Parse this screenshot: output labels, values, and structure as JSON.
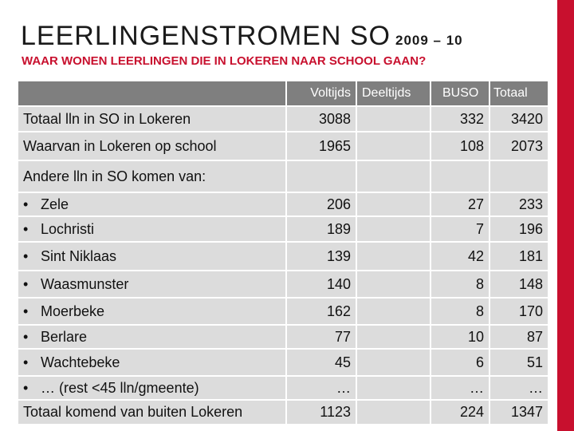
{
  "title": "LEERLINGENSTROMEN SO",
  "title_years": "2009 – 10",
  "subtitle": "WAAR WONEN LEERLINGEN DIE IN LOKEREN NAAR SCHOOL GAAN?",
  "accent_color": "#c8102e",
  "table": {
    "headers": {
      "label": "",
      "voltijds": "Voltijds",
      "deeltijds": "Deeltijds",
      "buso": "BUSO",
      "totaal": "Totaal"
    },
    "rows": [
      {
        "label": "Totaal lln in SO in Lokeren",
        "voltijds": "3088",
        "deeltijds": "",
        "buso": "332",
        "totaal": "3420"
      },
      {
        "label": "Waarvan in Lokeren op school",
        "voltijds": "1965",
        "deeltijds": "",
        "buso": "108",
        "totaal": "2073"
      },
      {
        "label": "Andere lln in SO komen van:",
        "voltijds": "",
        "deeltijds": "",
        "buso": "",
        "totaal": ""
      },
      {
        "bullet": "•",
        "label": "Zele",
        "voltijds": "206",
        "deeltijds": "",
        "buso": "27",
        "totaal": "233"
      },
      {
        "bullet": "•",
        "label": "Lochristi",
        "voltijds": "189",
        "deeltijds": "",
        "buso": "7",
        "totaal": "196"
      },
      {
        "bullet": "•",
        "label": "Sint Niklaas",
        "voltijds": "139",
        "deeltijds": "",
        "buso": "42",
        "totaal": "181"
      },
      {
        "bullet": "•",
        "label": "Waasmunster",
        "voltijds": "140",
        "deeltijds": "",
        "buso": "8",
        "totaal": "148"
      },
      {
        "bullet": "•",
        "label": "Moerbeke",
        "voltijds": "162",
        "deeltijds": "",
        "buso": "8",
        "totaal": "170"
      },
      {
        "bullet": "•",
        "label": "Berlare",
        "voltijds": "77",
        "deeltijds": "",
        "buso": "10",
        "totaal": "87"
      },
      {
        "bullet": "•",
        "label": "Wachtebeke",
        "voltijds": "45",
        "deeltijds": "",
        "buso": "6",
        "totaal": "51"
      },
      {
        "bullet": "•",
        "label": "… (rest <45 lln/gmeente)",
        "voltijds": "…",
        "deeltijds": "",
        "buso": "…",
        "totaal": "…"
      },
      {
        "label": "Totaal komend van buiten Lokeren",
        "voltijds": "1123",
        "deeltijds": "",
        "buso": "224",
        "totaal": "1347"
      }
    ]
  }
}
